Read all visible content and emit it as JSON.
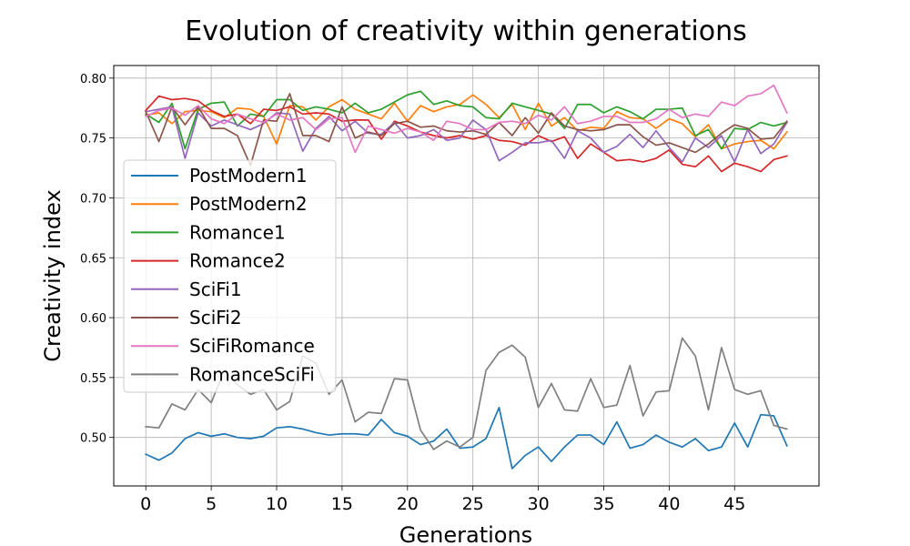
{
  "chart_data": {
    "type": "line",
    "title": "Evolution of creativity within generations",
    "xlabel": "Generations",
    "ylabel": "Creativity index",
    "xlim": [
      -2.45,
      51.45
    ],
    "ylim": [
      0.4595,
      0.8105
    ],
    "grid": true,
    "legend_position": "center-left",
    "x_ticks": [
      0,
      5,
      10,
      15,
      20,
      25,
      30,
      35,
      40,
      45
    ],
    "x_tick_labels": [
      "0",
      "5",
      "10",
      "15",
      "20",
      "25",
      "30",
      "35",
      "40",
      "45"
    ],
    "y_ticks": [
      0.5,
      0.55,
      0.6,
      0.65,
      0.7,
      0.75,
      0.8
    ],
    "y_tick_labels": [
      "0.50",
      "0.55",
      "0.60",
      "0.65",
      "0.70",
      "0.75",
      "0.80"
    ],
    "x": [
      0,
      1,
      2,
      3,
      4,
      5,
      6,
      7,
      8,
      9,
      10,
      11,
      12,
      13,
      14,
      15,
      16,
      17,
      18,
      19,
      20,
      21,
      22,
      23,
      24,
      25,
      26,
      27,
      28,
      29,
      30,
      31,
      32,
      33,
      34,
      35,
      36,
      37,
      38,
      39,
      40,
      41,
      42,
      43,
      44,
      45,
      46,
      47,
      48,
      49
    ],
    "series": [
      {
        "name": "PostModern1",
        "color": "#1f77b4",
        "values": [
          0.486,
          0.481,
          0.487,
          0.499,
          0.504,
          0.501,
          0.503,
          0.5,
          0.499,
          0.501,
          0.508,
          0.509,
          0.507,
          0.504,
          0.502,
          0.503,
          0.503,
          0.502,
          0.515,
          0.504,
          0.501,
          0.494,
          0.497,
          0.507,
          0.491,
          0.492,
          0.499,
          0.525,
          0.474,
          0.485,
          0.492,
          0.48,
          0.492,
          0.502,
          0.502,
          0.494,
          0.513,
          0.491,
          0.494,
          0.502,
          0.496,
          0.492,
          0.499,
          0.489,
          0.492,
          0.512,
          0.492,
          0.519,
          0.518,
          0.493
        ]
      },
      {
        "name": "PostModern2",
        "color": "#ff7f0e",
        "values": [
          0.769,
          0.771,
          0.762,
          0.772,
          0.773,
          0.772,
          0.767,
          0.775,
          0.774,
          0.768,
          0.745,
          0.777,
          0.776,
          0.765,
          0.776,
          0.782,
          0.774,
          0.77,
          0.766,
          0.779,
          0.764,
          0.777,
          0.772,
          0.776,
          0.778,
          0.786,
          0.778,
          0.767,
          0.778,
          0.757,
          0.779,
          0.76,
          0.767,
          0.756,
          0.759,
          0.758,
          0.772,
          0.767,
          0.766,
          0.758,
          0.766,
          0.762,
          0.751,
          0.761,
          0.741,
          0.745,
          0.747,
          0.748,
          0.741,
          0.755
        ]
      },
      {
        "name": "Romance1",
        "color": "#2ca02c",
        "values": [
          0.77,
          0.763,
          0.779,
          0.741,
          0.774,
          0.779,
          0.78,
          0.76,
          0.77,
          0.768,
          0.782,
          0.782,
          0.773,
          0.776,
          0.774,
          0.771,
          0.779,
          0.771,
          0.774,
          0.78,
          0.786,
          0.789,
          0.778,
          0.781,
          0.777,
          0.776,
          0.767,
          0.766,
          0.779,
          0.776,
          0.773,
          0.77,
          0.758,
          0.778,
          0.778,
          0.771,
          0.776,
          0.772,
          0.766,
          0.774,
          0.774,
          0.775,
          0.752,
          0.757,
          0.741,
          0.758,
          0.757,
          0.763,
          0.76,
          0.763
        ]
      },
      {
        "name": "Romance2",
        "color": "#d62728",
        "values": [
          0.773,
          0.785,
          0.782,
          0.783,
          0.781,
          0.773,
          0.768,
          0.77,
          0.762,
          0.774,
          0.773,
          0.776,
          0.77,
          0.771,
          0.77,
          0.764,
          0.765,
          0.765,
          0.749,
          0.764,
          0.76,
          0.755,
          0.752,
          0.75,
          0.752,
          0.749,
          0.752,
          0.748,
          0.747,
          0.744,
          0.752,
          0.747,
          0.751,
          0.733,
          0.745,
          0.738,
          0.731,
          0.732,
          0.73,
          0.733,
          0.74,
          0.728,
          0.726,
          0.735,
          0.722,
          0.729,
          0.726,
          0.722,
          0.732,
          0.735
        ]
      },
      {
        "name": "SciFi1",
        "color": "#9467bd",
        "values": [
          0.772,
          0.774,
          0.776,
          0.733,
          0.771,
          0.76,
          0.765,
          0.761,
          0.757,
          0.762,
          0.771,
          0.77,
          0.739,
          0.758,
          0.768,
          0.756,
          0.764,
          0.754,
          0.753,
          0.763,
          0.75,
          0.752,
          0.757,
          0.748,
          0.75,
          0.765,
          0.757,
          0.731,
          0.738,
          0.746,
          0.746,
          0.748,
          0.733,
          0.756,
          0.75,
          0.738,
          0.743,
          0.753,
          0.742,
          0.756,
          0.742,
          0.73,
          0.75,
          0.742,
          0.752,
          0.73,
          0.757,
          0.737,
          0.745,
          0.763
        ]
      },
      {
        "name": "SciFi2",
        "color": "#8c564b",
        "values": [
          0.772,
          0.747,
          0.776,
          0.761,
          0.776,
          0.758,
          0.758,
          0.752,
          0.727,
          0.765,
          0.764,
          0.787,
          0.752,
          0.752,
          0.747,
          0.776,
          0.75,
          0.755,
          0.752,
          0.762,
          0.764,
          0.759,
          0.76,
          0.756,
          0.755,
          0.756,
          0.753,
          0.763,
          0.752,
          0.767,
          0.754,
          0.771,
          0.76,
          0.757,
          0.756,
          0.757,
          0.761,
          0.761,
          0.751,
          0.744,
          0.746,
          0.742,
          0.738,
          0.745,
          0.754,
          0.761,
          0.758,
          0.749,
          0.75,
          0.764
        ]
      },
      {
        "name": "SciFiRomance",
        "color": "#e377c2",
        "values": [
          0.768,
          0.773,
          0.775,
          0.769,
          0.777,
          0.766,
          0.762,
          0.77,
          0.766,
          0.763,
          0.77,
          0.765,
          0.767,
          0.757,
          0.766,
          0.767,
          0.738,
          0.76,
          0.757,
          0.754,
          0.758,
          0.755,
          0.748,
          0.764,
          0.762,
          0.757,
          0.757,
          0.763,
          0.764,
          0.762,
          0.769,
          0.765,
          0.776,
          0.762,
          0.764,
          0.768,
          0.768,
          0.763,
          0.763,
          0.766,
          0.774,
          0.767,
          0.77,
          0.768,
          0.78,
          0.777,
          0.785,
          0.787,
          0.794,
          0.771
        ]
      },
      {
        "name": "RomanceSciFi",
        "color": "#7f7f7f",
        "values": [
          0.509,
          0.508,
          0.528,
          0.523,
          0.54,
          0.529,
          0.556,
          0.544,
          0.536,
          0.54,
          0.523,
          0.53,
          0.568,
          0.562,
          0.536,
          0.548,
          0.513,
          0.521,
          0.52,
          0.549,
          0.548,
          0.506,
          0.49,
          0.497,
          0.492,
          0.5,
          0.556,
          0.571,
          0.577,
          0.567,
          0.525,
          0.545,
          0.523,
          0.522,
          0.549,
          0.525,
          0.527,
          0.56,
          0.518,
          0.538,
          0.539,
          0.583,
          0.568,
          0.523,
          0.575,
          0.54,
          0.536,
          0.539,
          0.51,
          0.507
        ]
      }
    ]
  }
}
